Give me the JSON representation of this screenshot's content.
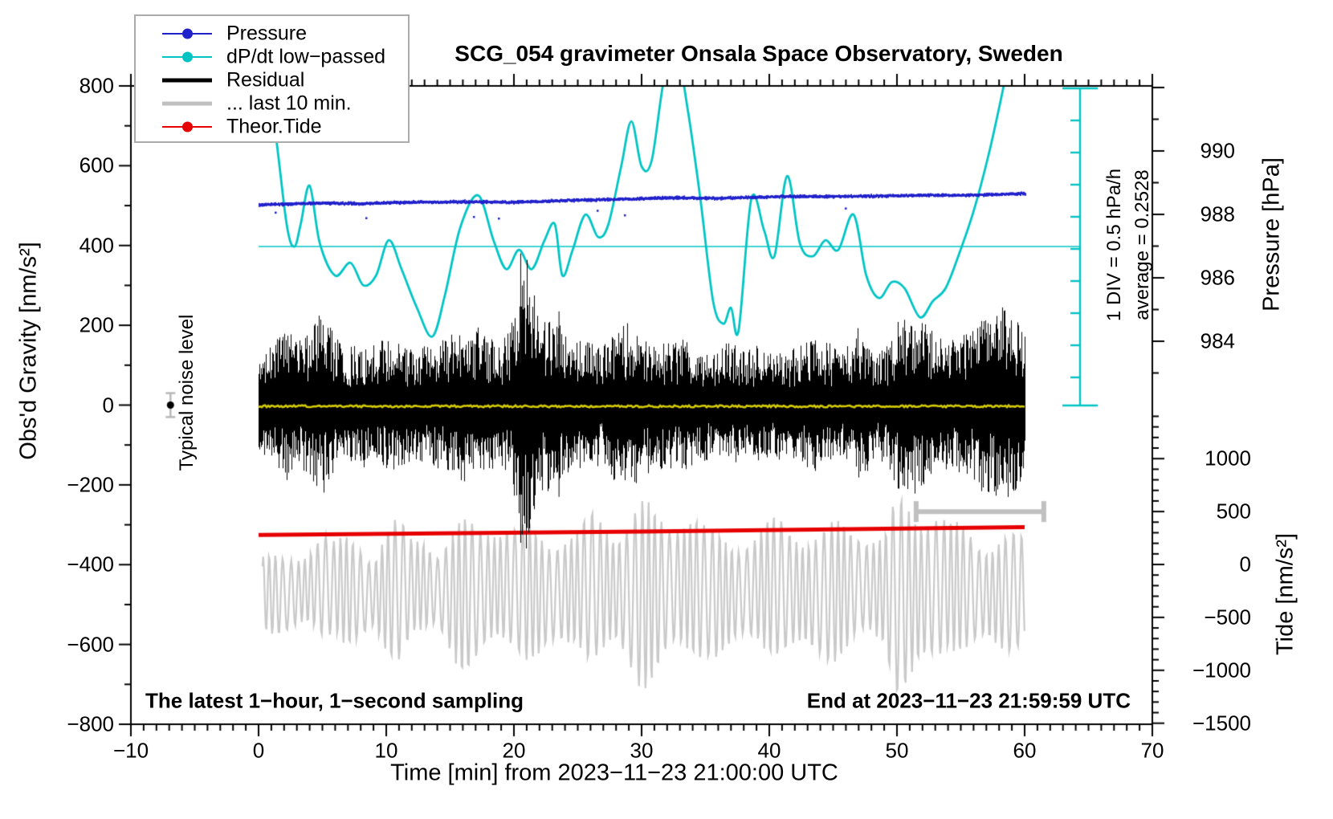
{
  "title": "SCG_054 gravimeter Onsala Space Observatory, Sweden",
  "legend": {
    "items": [
      {
        "label": "Pressure",
        "color": "#2121cc",
        "dot": true,
        "thick": false
      },
      {
        "label": "dP/dt low−passed",
        "color": "#00c4c4",
        "dot": true,
        "thick": false
      },
      {
        "label": "Residual",
        "color": "#000000",
        "dot": false,
        "thick": true
      },
      {
        "label": "... last 10 min.",
        "color": "#c0c0c0",
        "dot": false,
        "thick": true
      },
      {
        "label": "Theor.Tide",
        "color": "#e60000",
        "dot": true,
        "thick": false
      }
    ]
  },
  "annotations": {
    "noise_level": "Typical noise level",
    "div_scale": "1 DIV = 0.5 hPa/h",
    "average": "average = 0.2528",
    "bottom_left": "The latest 1−hour, 1−second sampling",
    "bottom_right": "End at 2023−11−23 21:59:59 UTC"
  },
  "axes": {
    "x": {
      "label": "Time [min] from 2023−11−23 21:00:00 UTC",
      "range": [
        -10,
        70
      ],
      "ticks": [
        -10,
        0,
        10,
        20,
        30,
        40,
        50,
        60,
        70
      ],
      "tick_labels": [
        "−10",
        "0",
        "10",
        "20",
        "30",
        "40",
        "50",
        "60",
        "70"
      ],
      "minor_step": 1
    },
    "left": {
      "label": "Obs'd Gravity [nm/s²]",
      "range": [
        -800,
        800
      ],
      "ticks": [
        800,
        600,
        400,
        200,
        0,
        -200,
        -400,
        -600,
        -800
      ],
      "tick_labels": [
        "800",
        "600",
        "400",
        "200",
        "0",
        "−200",
        "−400",
        "−600",
        "−800"
      ],
      "minor_step": 100
    },
    "pressure": {
      "label": "Pressure [hPa]",
      "ticks": [
        990,
        988,
        986,
        984
      ],
      "tick_labels": [
        "990",
        "988",
        "986",
        "984"
      ],
      "minor_step": 1
    },
    "tide": {
      "label": "Tide [nm/s²]",
      "ticks": [
        1000,
        500,
        0,
        -500,
        -1000,
        -1500
      ],
      "tick_labels": [
        "1000",
        "500",
        "0",
        "−500",
        "−1000",
        "−1500"
      ],
      "minor_step": 100
    }
  },
  "chart_data": {
    "type": "line",
    "title": "SCG_054 gravimeter Onsala Space Observatory, Sweden",
    "xlabel": "Time [min] from 2023-11-23 21:00:00 UTC",
    "x_range_min": [
      -10,
      70
    ],
    "data_span_min": [
      0,
      60
    ],
    "grid": false,
    "legend_position": "top-left",
    "left_axis": {
      "label": "Obs'd Gravity [nm/s2]",
      "ylim": [
        -800,
        800
      ]
    },
    "pressure_axis": {
      "label": "Pressure [hPa]",
      "visible_ticks": [
        984,
        990
      ]
    },
    "tide_axis": {
      "label": "Tide [nm/s2]",
      "visible_ticks": [
        -1500,
        1000
      ]
    },
    "dpdt_scale": {
      "div_value_hpa_per_h": 0.5,
      "average_hpa_per_h": 0.2528
    },
    "series": [
      {
        "name": "Pressure",
        "unit": "hPa",
        "color": "#2121cc",
        "style": "noisy-dotted-line",
        "noise_sd": 0.06,
        "keypoints": [
          [
            0,
            988.33
          ],
          [
            5,
            988.38
          ],
          [
            8,
            988.36
          ],
          [
            12,
            988.41
          ],
          [
            16,
            988.42
          ],
          [
            20,
            988.41
          ],
          [
            24,
            988.46
          ],
          [
            28,
            988.5
          ],
          [
            32,
            988.55
          ],
          [
            36,
            988.53
          ],
          [
            40,
            988.58
          ],
          [
            44,
            988.59
          ],
          [
            48,
            988.6
          ],
          [
            52,
            988.63
          ],
          [
            56,
            988.63
          ],
          [
            60,
            988.68
          ]
        ]
      },
      {
        "name": "dP/dt low-passed",
        "unit": "hPa/h",
        "color": "#00c4c4",
        "style": "smooth-line",
        "keypoints": [
          [
            0.4,
            2.85
          ],
          [
            1.2,
            2.2
          ],
          [
            2.2,
            0.6
          ],
          [
            2.8,
            0.25
          ],
          [
            3.3,
            0.6
          ],
          [
            4.0,
            1.2
          ],
          [
            4.8,
            0.3
          ],
          [
            6.0,
            -0.2
          ],
          [
            7.2,
            0.0
          ],
          [
            8.2,
            -0.35
          ],
          [
            9.2,
            -0.2
          ],
          [
            10.2,
            0.35
          ],
          [
            11.2,
            -0.1
          ],
          [
            12.4,
            -0.7
          ],
          [
            13.6,
            -1.15
          ],
          [
            14.6,
            -0.5
          ],
          [
            15.8,
            0.55
          ],
          [
            17.2,
            1.05
          ],
          [
            18.4,
            0.35
          ],
          [
            19.4,
            -0.1
          ],
          [
            20.4,
            0.2
          ],
          [
            21.4,
            -0.1
          ],
          [
            22.4,
            0.35
          ],
          [
            23.2,
            0.6
          ],
          [
            23.8,
            -0.2
          ],
          [
            24.6,
            0.2
          ],
          [
            25.6,
            0.75
          ],
          [
            26.6,
            0.4
          ],
          [
            27.4,
            0.6
          ],
          [
            28.4,
            1.5
          ],
          [
            29.2,
            2.2
          ],
          [
            30.0,
            1.5
          ],
          [
            30.8,
            1.6
          ],
          [
            31.8,
            2.9
          ],
          [
            32.8,
            3.2
          ],
          [
            33.6,
            2.4
          ],
          [
            34.6,
            1.0
          ],
          [
            35.6,
            -0.6
          ],
          [
            36.4,
            -0.95
          ],
          [
            37.0,
            -0.7
          ],
          [
            37.6,
            -1.05
          ],
          [
            38.6,
            1.0
          ],
          [
            39.6,
            0.5
          ],
          [
            40.4,
            0.1
          ],
          [
            41.4,
            1.35
          ],
          [
            42.4,
            0.3
          ],
          [
            43.4,
            0.1
          ],
          [
            44.4,
            0.35
          ],
          [
            45.4,
            0.2
          ],
          [
            46.6,
            0.75
          ],
          [
            47.6,
            -0.2
          ],
          [
            48.6,
            -0.55
          ],
          [
            49.6,
            -0.3
          ],
          [
            50.6,
            -0.4
          ],
          [
            51.8,
            -0.85
          ],
          [
            52.8,
            -0.6
          ],
          [
            53.8,
            -0.4
          ],
          [
            54.8,
            0.1
          ],
          [
            56.0,
            0.8
          ],
          [
            57.2,
            1.7
          ],
          [
            58.2,
            2.6
          ],
          [
            59.0,
            3.4
          ]
        ]
      },
      {
        "name": "Residual",
        "unit": "nm/s2",
        "color": "#000000",
        "style": "noise-band",
        "center": 0,
        "envelope_per_min": [
          130,
          150,
          200,
          160,
          190,
          240,
          170,
          150,
          160,
          150,
          170,
          160,
          140,
          150,
          160,
          175,
          195,
          200,
          170,
          150,
          230,
          380,
          210,
          230,
          190,
          170,
          160,
          150,
          200,
          210,
          185,
          170,
          160,
          170,
          150,
          140,
          150,
          160,
          140,
          150,
          135,
          140,
          150,
          160,
          170,
          150,
          145,
          200,
          150,
          140,
          215,
          230,
          210,
          180,
          160,
          170,
          200,
          230,
          250,
          235,
          180
        ],
        "spikes": [
          {
            "t_min": 20.5,
            "up": 380,
            "down": -345
          },
          {
            "t_min": 23.5,
            "up": 235,
            "down": -230
          }
        ]
      },
      {
        "name": "Residual smoothed (yellow)",
        "unit": "nm/s2",
        "color": "#d4cb00",
        "style": "line",
        "keypoints": [
          [
            0,
            -3
          ],
          [
            60,
            -3
          ]
        ]
      },
      {
        "name": "... last 10 min.",
        "unit": "nm/s2",
        "color": "#c9c9c9",
        "style": "oscillation",
        "center": -465,
        "period_min": 0.55,
        "envelope_per_min": [
          100,
          100,
          100,
          120,
          140,
          150,
          110,
          160,
          170,
          120,
          170,
          180,
          140,
          180,
          120,
          150,
          200,
          210,
          220,
          180,
          150,
          180,
          200,
          190,
          160,
          140,
          200,
          220,
          200,
          210,
          240,
          230,
          220,
          230,
          200,
          160,
          180,
          190,
          160,
          140,
          170,
          200,
          210,
          180,
          160,
          180,
          200,
          190,
          150,
          140,
          260,
          280,
          270,
          220,
          160,
          170,
          180,
          170,
          160,
          150,
          140
        ]
      },
      {
        "name": "Theor.Tide",
        "unit": "nm/s2 (tide axis)",
        "color": "#e60000",
        "style": "thick-line",
        "keypoints": [
          [
            0,
            278
          ],
          [
            30,
            312
          ],
          [
            60,
            352
          ]
        ]
      }
    ],
    "noise_marker": {
      "label": "Typical noise level",
      "t_min": -6.9,
      "gravity": 0,
      "error": 30
    },
    "range_bar": {
      "t_from_min": 51.5,
      "t_to_min": 61.5,
      "gravity": -267
    },
    "colors": {
      "frame": "#000000",
      "cyan_scale": "#00c4c4",
      "gray_bar": "#c0c0c0",
      "error_bar": "#b8b8b8"
    }
  }
}
